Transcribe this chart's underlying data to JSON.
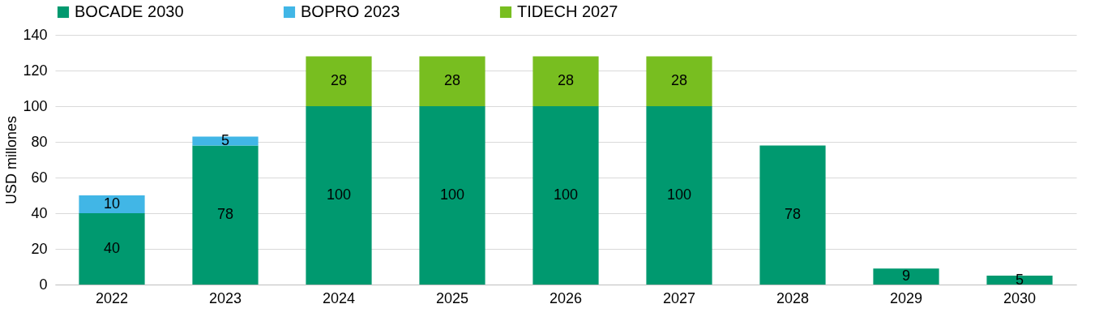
{
  "chart_data": {
    "type": "bar",
    "stacked": true,
    "ylabel": "USD millones",
    "categories": [
      "2022",
      "2023",
      "2024",
      "2025",
      "2026",
      "2027",
      "2028",
      "2029",
      "2030"
    ],
    "series": [
      {
        "name": "BOCADE 2030",
        "color": "#00996f",
        "values": [
          40,
          78,
          100,
          100,
          100,
          100,
          78,
          9,
          5
        ]
      },
      {
        "name": "BOPRO 2023",
        "color": "#41b6e6",
        "values": [
          10,
          5,
          null,
          null,
          null,
          null,
          null,
          null,
          null
        ]
      },
      {
        "name": "TIDECH 2027",
        "color": "#78be20",
        "values": [
          null,
          null,
          28,
          28,
          28,
          28,
          null,
          null,
          null
        ]
      }
    ],
    "ylim": [
      0,
      140
    ],
    "yticks": [
      0,
      20,
      40,
      60,
      80,
      100,
      120,
      140
    ],
    "grid": "y",
    "legend": "top",
    "data_labels": true
  }
}
